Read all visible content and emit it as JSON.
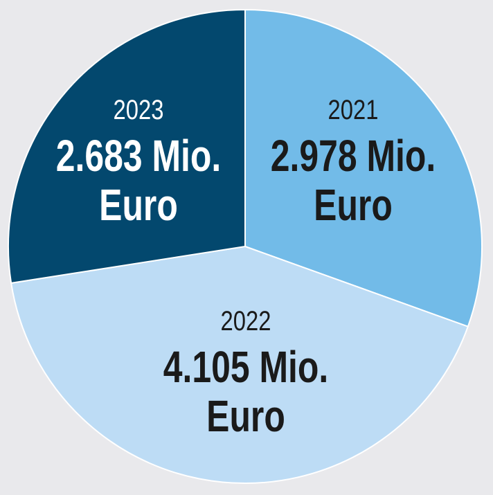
{
  "chart_data": {
    "type": "pie",
    "slices": [
      {
        "year": "2021",
        "value": 2978,
        "value_line1": "2.978 Mio.",
        "value_line2": "Euro",
        "color": "#72bbe8",
        "text_color": "#1a1a1a"
      },
      {
        "year": "2022",
        "value": 4105,
        "value_line1": "4.105 Mio.",
        "value_line2": "Euro",
        "color": "#bddcf5",
        "text_color": "#1a1a1a"
      },
      {
        "year": "2023",
        "value": 2683,
        "value_line1": "2.683 Mio.",
        "value_line2": "Euro",
        "color": "#03486e",
        "text_color": "#ffffff"
      }
    ],
    "start": "12 o'clock",
    "direction": "clockwise",
    "slice_border_color": "#ffffff",
    "background": "#e9e9ec"
  }
}
